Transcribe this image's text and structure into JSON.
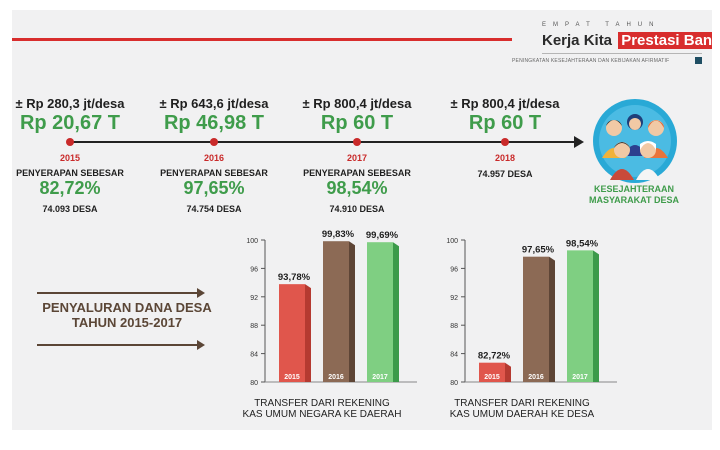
{
  "header": {
    "brand_top": "EMPAT TAHUN",
    "brand_prefix": "Kerja Kita",
    "brand_highlight": "Prestasi Bangsa",
    "brand_sub": "PENINGKATAN KESEJAHTERAAN DAN KEBIJAKAN AFIRMATIF"
  },
  "timeline": [
    {
      "year": "2015",
      "per_desa": "± Rp 280,3 jt/desa",
      "total": "Rp 20,67 T",
      "serap_label": "PENYERAPAN SEBESAR",
      "serap_pct": "82,72%",
      "desa": "74.093 DESA"
    },
    {
      "year": "2016",
      "per_desa": "± Rp 643,6 jt/desa",
      "total": "Rp 46,98 T",
      "serap_label": "PENYERAPAN SEBESAR",
      "serap_pct": "97,65%",
      "desa": "74.754 DESA"
    },
    {
      "year": "2017",
      "per_desa": "± Rp 800,4 jt/desa",
      "total": "Rp 60 T",
      "serap_label": "PENYERAPAN SEBESAR",
      "serap_pct": "98,54%",
      "desa": "74.910 DESA"
    },
    {
      "year": "2018",
      "per_desa": "± Rp 800,4 jt/desa",
      "total": "Rp 60 T",
      "desa": "74.957 DESA"
    }
  ],
  "goal": {
    "line1": "KESEJAHTERAAN",
    "line2": "MASYARAKAT DESA"
  },
  "left_label": {
    "line1": "PENYALURAN DANA DESA",
    "line2": "TAHUN 2015-2017"
  },
  "colors": {
    "red": "#e0564c",
    "brown": "#8c6a55",
    "green": "#7fcf82"
  },
  "chart_data": [
    {
      "type": "bar",
      "categories": [
        "2015",
        "2016",
        "2017"
      ],
      "values": [
        93.78,
        99.83,
        99.69
      ],
      "value_labels": [
        "93,78%",
        "99,83%",
        "99,69%"
      ],
      "yticks": [
        "100",
        "96",
        "92",
        "88",
        "84",
        "80"
      ],
      "ylim": [
        80,
        100
      ],
      "caption_line1": "TRANSFER DARI REKENING",
      "caption_line2": "KAS UMUM NEGARA KE DAERAH"
    },
    {
      "type": "bar",
      "categories": [
        "2015",
        "2016",
        "2017"
      ],
      "values": [
        82.72,
        97.65,
        98.54
      ],
      "value_labels": [
        "82,72%",
        "97,65%",
        "98,54%"
      ],
      "yticks": [
        "100",
        "96",
        "92",
        "88",
        "84",
        "80"
      ],
      "ylim": [
        80,
        100
      ],
      "caption_line1": "TRANSFER DARI REKENING",
      "caption_line2": "KAS UMUM DAERAH KE DESA"
    }
  ]
}
